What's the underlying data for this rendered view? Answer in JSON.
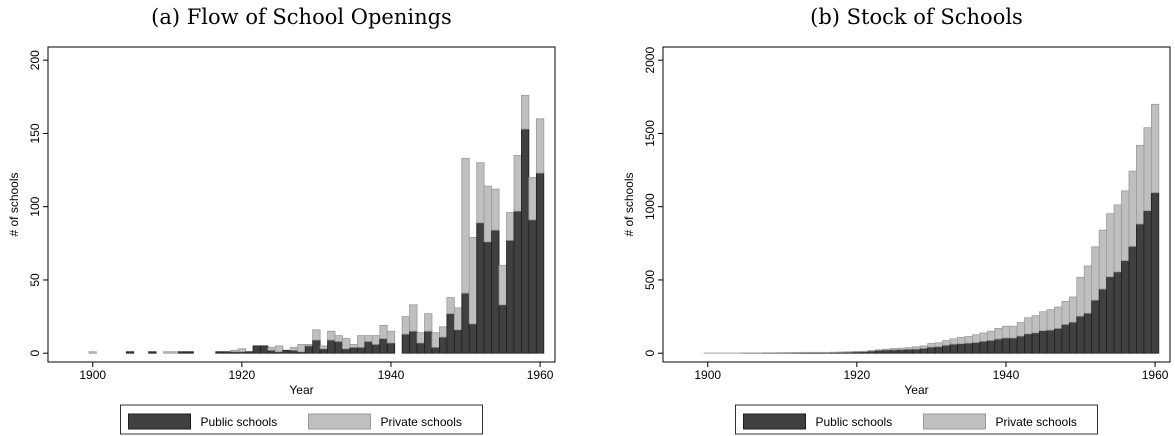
{
  "chart_data": [
    {
      "type": "bar",
      "stacked": true,
      "title": "(a) Flow of School Openings",
      "xlabel": "Year",
      "ylabel": "# of schools",
      "x": [
        1900,
        1901,
        1902,
        1903,
        1904,
        1905,
        1906,
        1907,
        1908,
        1909,
        1910,
        1911,
        1912,
        1913,
        1914,
        1915,
        1916,
        1917,
        1918,
        1919,
        1920,
        1921,
        1922,
        1923,
        1924,
        1925,
        1926,
        1927,
        1928,
        1929,
        1930,
        1931,
        1932,
        1933,
        1934,
        1935,
        1936,
        1937,
        1938,
        1939,
        1940,
        1941,
        1942,
        1943,
        1944,
        1945,
        1946,
        1947,
        1948,
        1949,
        1950,
        1951,
        1952,
        1953,
        1954,
        1955,
        1956,
        1957,
        1958,
        1959,
        1960
      ],
      "series": [
        {
          "name": "Public schools",
          "color": "#404040",
          "values": [
            0,
            0,
            0,
            0,
            0,
            1,
            0,
            0,
            1,
            0,
            0,
            0,
            1,
            1,
            0,
            0,
            0,
            1,
            1,
            1,
            1,
            1,
            5,
            5,
            2,
            1,
            2,
            2,
            1,
            5,
            9,
            3,
            9,
            8,
            3,
            4,
            4,
            8,
            6,
            10,
            7,
            0,
            13,
            15,
            7,
            15,
            4,
            11,
            27,
            16,
            41,
            20,
            89,
            76,
            84,
            33,
            77,
            97,
            153,
            91,
            123
          ]
        },
        {
          "name": "Private schools",
          "color": "#bfbfbf",
          "values": [
            1,
            0,
            0,
            0,
            0,
            0,
            0,
            0,
            0,
            0,
            1,
            1,
            0,
            0,
            0,
            0,
            0,
            0,
            0,
            1,
            2,
            0,
            0,
            0,
            2,
            4,
            0,
            2,
            5,
            1,
            7,
            2,
            6,
            4,
            7,
            2,
            8,
            4,
            6,
            9,
            8,
            0,
            12,
            18,
            7,
            12,
            10,
            7,
            11,
            15,
            92,
            59,
            41,
            38,
            28,
            27,
            19,
            38,
            23,
            29,
            37
          ]
        }
      ],
      "xlim": [
        1894,
        1962
      ],
      "xticks": [
        1900,
        1920,
        1940,
        1960
      ],
      "ylim": [
        -6,
        209
      ],
      "yticks": [
        0,
        50,
        100,
        150,
        200
      ]
    },
    {
      "type": "bar",
      "stacked": true,
      "title": "(b) Stock of Schools",
      "xlabel": "Year",
      "ylabel": "# of schools",
      "x": [
        1900,
        1901,
        1902,
        1903,
        1904,
        1905,
        1906,
        1907,
        1908,
        1909,
        1910,
        1911,
        1912,
        1913,
        1914,
        1915,
        1916,
        1917,
        1918,
        1919,
        1920,
        1921,
        1922,
        1923,
        1924,
        1925,
        1926,
        1927,
        1928,
        1929,
        1930,
        1931,
        1932,
        1933,
        1934,
        1935,
        1936,
        1937,
        1938,
        1939,
        1940,
        1941,
        1942,
        1943,
        1944,
        1945,
        1946,
        1947,
        1948,
        1949,
        1950,
        1951,
        1952,
        1953,
        1954,
        1955,
        1956,
        1957,
        1958,
        1959,
        1960
      ],
      "series": [
        {
          "name": "Public schools",
          "color": "#404040",
          "values": [
            0,
            0,
            0,
            0,
            0,
            1,
            1,
            1,
            2,
            2,
            2,
            2,
            3,
            4,
            4,
            4,
            4,
            5,
            6,
            7,
            9,
            10,
            15,
            20,
            22,
            23,
            25,
            27,
            28,
            33,
            42,
            45,
            54,
            62,
            65,
            69,
            73,
            81,
            87,
            97,
            104,
            104,
            117,
            132,
            139,
            154,
            158,
            169,
            196,
            212,
            253,
            273,
            362,
            438,
            522,
            555,
            632,
            729,
            882,
            973,
            1096
          ]
        },
        {
          "name": "Private schools",
          "color": "#bfbfbf",
          "values": [
            1,
            1,
            1,
            1,
            1,
            1,
            1,
            1,
            1,
            1,
            2,
            3,
            2,
            2,
            2,
            2,
            2,
            2,
            2,
            3,
            3,
            3,
            3,
            3,
            5,
            9,
            9,
            11,
            16,
            17,
            24,
            26,
            32,
            36,
            43,
            45,
            53,
            57,
            63,
            72,
            80,
            80,
            92,
            110,
            117,
            129,
            139,
            146,
            157,
            172,
            264,
            323,
            364,
            402,
            430,
            457,
            476,
            514,
            537,
            566,
            603
          ]
        }
      ],
      "xlim": [
        1894,
        1962
      ],
      "xticks": [
        1900,
        1920,
        1940,
        1960
      ],
      "ylim": [
        -60,
        2090
      ],
      "yticks": [
        0,
        500,
        1000,
        1500,
        2000
      ]
    }
  ]
}
